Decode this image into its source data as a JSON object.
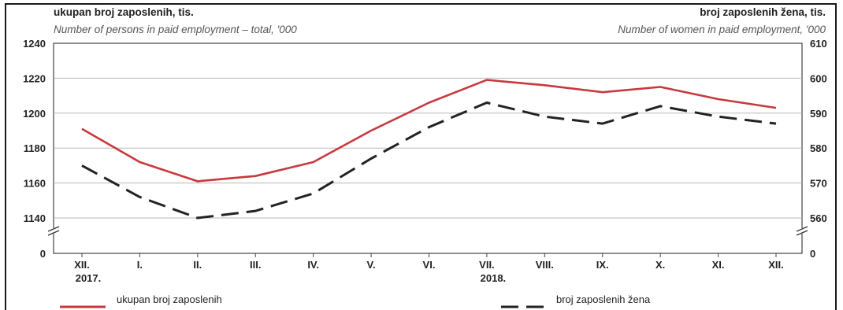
{
  "header": {
    "left_title": "ukupan broj zaposlenih, tis.",
    "left_subtitle": "Number of persons in paid employment – total, '000",
    "right_title": "broj zaposlenih žena, tis.",
    "right_subtitle": "Number of women in paid employment, '000"
  },
  "legend": {
    "total_label": "ukupan broj zaposlenih",
    "women_label": "broj zaposlenih žena"
  },
  "chart_data": {
    "type": "line",
    "categories": [
      "XII.",
      "I.",
      "II.",
      "III.",
      "IV.",
      "V.",
      "VI.",
      "VII.",
      "VIII.",
      "IX.",
      "X.",
      "XI.",
      "XII."
    ],
    "year_labels": [
      {
        "index": 0,
        "label": "2017."
      },
      {
        "index": 7,
        "label": "2018."
      }
    ],
    "series": [
      {
        "name": "ukupan broj zaposlenih",
        "axis": "left",
        "color": "#c8393d",
        "style": "solid",
        "values": [
          1191,
          1172,
          1161,
          1164,
          1172,
          1190,
          1206,
          1219,
          1216,
          1212,
          1215,
          1208,
          1203
        ]
      },
      {
        "name": "broj zaposlenih žena",
        "axis": "right",
        "color": "#222222",
        "style": "dashed",
        "values": [
          575,
          566,
          560,
          562,
          567,
          577,
          586,
          593,
          589,
          587,
          592,
          589,
          587
        ]
      }
    ],
    "left_axis": {
      "ticks": [
        1140,
        1160,
        1180,
        1200,
        1220,
        1240
      ],
      "zero_label": "0",
      "broken": true
    },
    "right_axis": {
      "ticks": [
        560,
        570,
        580,
        590,
        600,
        610
      ],
      "zero_label": "0",
      "broken": true
    },
    "grid": true
  }
}
